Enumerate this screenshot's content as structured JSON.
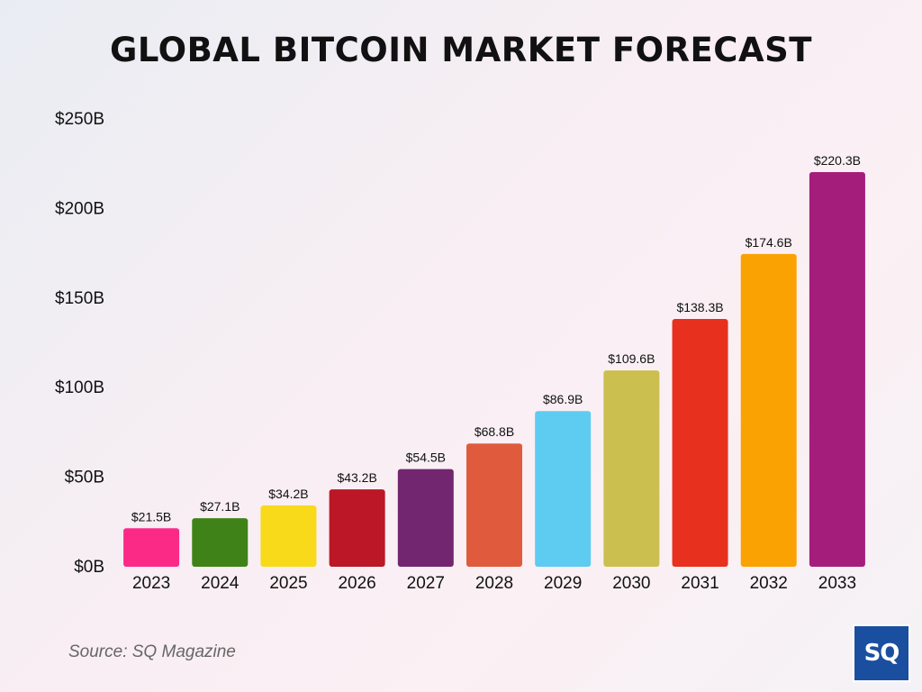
{
  "chart_data": {
    "type": "bar",
    "title": "GLOBAL BITCOIN MARKET FORECAST",
    "categories": [
      "2023",
      "2024",
      "2025",
      "2026",
      "2027",
      "2028",
      "2029",
      "2030",
      "2031",
      "2032",
      "2033"
    ],
    "values": [
      21.5,
      27.1,
      34.2,
      43.2,
      54.5,
      68.8,
      86.9,
      109.6,
      138.3,
      174.6,
      220.3
    ],
    "value_labels": [
      "$21.5B",
      "$27.1B",
      "$34.2B",
      "$43.2B",
      "$54.5B",
      "$68.8B",
      "$86.9B",
      "$109.6B",
      "$138.3B",
      "$174.6B",
      "$220.3B"
    ],
    "colors": [
      "#fb2a87",
      "#3f8318",
      "#f8da1b",
      "#bb1726",
      "#72266f",
      "#e05b3e",
      "#5ecbf1",
      "#cbbf50",
      "#e8301f",
      "#fba203",
      "#a51d7b"
    ],
    "yticks": [
      0,
      50,
      100,
      150,
      200,
      250
    ],
    "ytick_labels": [
      "$0B",
      "$50B",
      "$100B",
      "$150B",
      "$200B",
      "$250B"
    ],
    "ylim": [
      0,
      250
    ],
    "xlabel": "",
    "ylabel": "",
    "grid": false
  },
  "footer": {
    "source": "Source: SQ Magazine",
    "logo_text": "SQ"
  },
  "colors": {
    "logo_bg": "#1a4fa0"
  }
}
